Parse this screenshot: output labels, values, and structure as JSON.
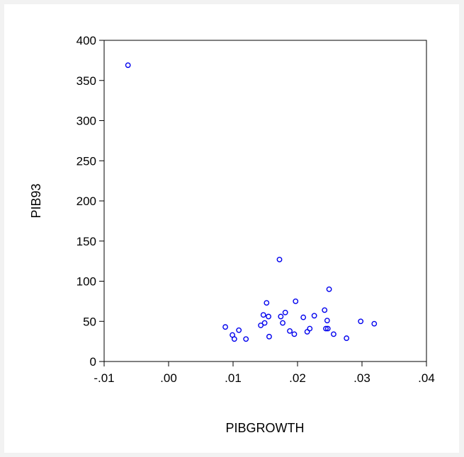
{
  "chart_data": {
    "type": "scatter",
    "title": "",
    "xlabel": "PIBGROWTH",
    "ylabel": "PIB93",
    "xlim": [
      -0.01,
      0.04
    ],
    "ylim": [
      0,
      400
    ],
    "x_ticks": [
      -0.01,
      0.0,
      0.01,
      0.02,
      0.03,
      0.04
    ],
    "x_tick_labels": [
      "-.01",
      ".00",
      ".01",
      ".02",
      ".03",
      ".04"
    ],
    "y_ticks": [
      0,
      50,
      100,
      150,
      200,
      250,
      300,
      350,
      400
    ],
    "y_tick_labels": [
      "0",
      "50",
      "100",
      "150",
      "200",
      "250",
      "300",
      "350",
      "400"
    ],
    "grid": false,
    "legend": "none",
    "marker": "open-circle",
    "color": "#0000ee",
    "points": [
      {
        "x": -0.0063,
        "y": 369
      },
      {
        "x": 0.0172,
        "y": 127
      },
      {
        "x": 0.0249,
        "y": 90
      },
      {
        "x": 0.0152,
        "y": 73
      },
      {
        "x": 0.0197,
        "y": 75
      },
      {
        "x": 0.0242,
        "y": 64
      },
      {
        "x": 0.0181,
        "y": 61
      },
      {
        "x": 0.0147,
        "y": 58
      },
      {
        "x": 0.0155,
        "y": 56
      },
      {
        "x": 0.0174,
        "y": 56
      },
      {
        "x": 0.0226,
        "y": 57
      },
      {
        "x": 0.0209,
        "y": 55
      },
      {
        "x": 0.0246,
        "y": 51
      },
      {
        "x": 0.0298,
        "y": 50
      },
      {
        "x": 0.0319,
        "y": 47
      },
      {
        "x": 0.0149,
        "y": 48
      },
      {
        "x": 0.0177,
        "y": 48
      },
      {
        "x": 0.0143,
        "y": 45
      },
      {
        "x": 0.0088,
        "y": 43
      },
      {
        "x": 0.0109,
        "y": 39
      },
      {
        "x": 0.0188,
        "y": 38
      },
      {
        "x": 0.0219,
        "y": 41
      },
      {
        "x": 0.0215,
        "y": 37
      },
      {
        "x": 0.0244,
        "y": 41
      },
      {
        "x": 0.0247,
        "y": 41
      },
      {
        "x": 0.0099,
        "y": 33
      },
      {
        "x": 0.0195,
        "y": 34
      },
      {
        "x": 0.0156,
        "y": 31
      },
      {
        "x": 0.0256,
        "y": 34
      },
      {
        "x": 0.0102,
        "y": 28
      },
      {
        "x": 0.012,
        "y": 28
      },
      {
        "x": 0.0276,
        "y": 29
      }
    ]
  }
}
